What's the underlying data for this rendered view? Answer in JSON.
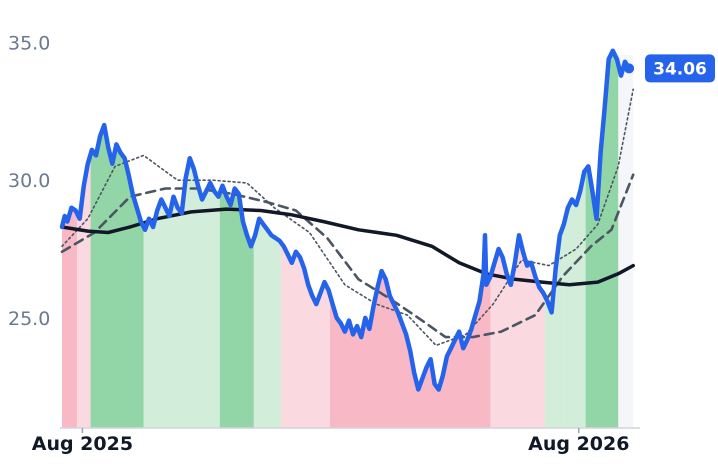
{
  "chart_data": {
    "type": "line",
    "x_ticks": [
      "Aug 2025",
      "Aug 2026"
    ],
    "y_ticks": [
      "35.0",
      "30.0",
      "25.0"
    ],
    "y_tick_values": [
      35,
      30,
      25
    ],
    "ylim": [
      21,
      36
    ],
    "x_start": "2025-07-17",
    "x_end": "2026-09-15",
    "x_tick_dates": [
      "2025-08-01",
      "2026-08-01"
    ],
    "last_value_label": "34.06",
    "last_value": 34.06,
    "colors": {
      "price": "#2563eb",
      "long_average": "#111827",
      "bands": "#4b5563",
      "green_band": "#7fcf98",
      "red_band": "#f8b4c2",
      "future_zone": "#f5f6fa"
    },
    "regime_blocks": [
      {
        "from": "2025-07-17",
        "to": "2025-07-28",
        "color": "red",
        "strength": "strong"
      },
      {
        "from": "2025-07-28",
        "to": "2025-08-07",
        "color": "red",
        "strength": "weak"
      },
      {
        "from": "2025-08-07",
        "to": "2025-09-15",
        "color": "green",
        "strength": "strong"
      },
      {
        "from": "2025-09-15",
        "to": "2025-11-10",
        "color": "green",
        "strength": "weak"
      },
      {
        "from": "2025-11-10",
        "to": "2025-12-05",
        "color": "green",
        "strength": "strong"
      },
      {
        "from": "2025-12-05",
        "to": "2025-12-25",
        "color": "green",
        "strength": "weak"
      },
      {
        "from": "2025-12-25",
        "to": "2026-01-30",
        "color": "red",
        "strength": "weak"
      },
      {
        "from": "2026-01-30",
        "to": "2026-05-28",
        "color": "red",
        "strength": "strong"
      },
      {
        "from": "2026-05-28",
        "to": "2026-07-07",
        "color": "red",
        "strength": "weak"
      },
      {
        "from": "2026-07-07",
        "to": "2026-07-21",
        "color": "green",
        "strength": "weak"
      },
      {
        "from": "2026-07-21",
        "to": "2026-08-06",
        "color": "green",
        "strength": "weak"
      },
      {
        "from": "2026-08-06",
        "to": "2026-08-30",
        "color": "green",
        "strength": "strong"
      }
    ],
    "series": [
      {
        "name": "",
        "role": "price",
        "points": [
          [
            "2025-07-17",
            28.3
          ],
          [
            "2025-07-19",
            28.7
          ],
          [
            "2025-07-21",
            28.5
          ],
          [
            "2025-07-24",
            29.0
          ],
          [
            "2025-07-27",
            28.9
          ],
          [
            "2025-07-30",
            28.6
          ],
          [
            "2025-08-02",
            29.8
          ],
          [
            "2025-08-05",
            30.6
          ],
          [
            "2025-08-08",
            31.1
          ],
          [
            "2025-08-11",
            30.9
          ],
          [
            "2025-08-14",
            31.6
          ],
          [
            "2025-08-17",
            32.0
          ],
          [
            "2025-08-20",
            31.2
          ],
          [
            "2025-08-23",
            30.6
          ],
          [
            "2025-08-26",
            31.3
          ],
          [
            "2025-08-29",
            31.0
          ],
          [
            "2025-09-01",
            30.8
          ],
          [
            "2025-09-04",
            30.2
          ],
          [
            "2025-09-07",
            29.5
          ],
          [
            "2025-09-10",
            29.0
          ],
          [
            "2025-09-13",
            28.5
          ],
          [
            "2025-09-16",
            28.2
          ],
          [
            "2025-09-19",
            28.6
          ],
          [
            "2025-09-22",
            28.3
          ],
          [
            "2025-09-25",
            28.9
          ],
          [
            "2025-09-28",
            29.3
          ],
          [
            "2025-10-01",
            29.0
          ],
          [
            "2025-10-04",
            28.7
          ],
          [
            "2025-10-07",
            29.4
          ],
          [
            "2025-10-10",
            29.0
          ],
          [
            "2025-10-13",
            28.8
          ],
          [
            "2025-10-16",
            30.1
          ],
          [
            "2025-10-19",
            30.8
          ],
          [
            "2025-10-22",
            30.4
          ],
          [
            "2025-10-25",
            29.8
          ],
          [
            "2025-10-28",
            29.3
          ],
          [
            "2025-10-31",
            29.6
          ],
          [
            "2025-11-03",
            29.9
          ],
          [
            "2025-11-06",
            29.6
          ],
          [
            "2025-11-09",
            29.4
          ],
          [
            "2025-11-12",
            29.8
          ],
          [
            "2025-11-15",
            29.4
          ],
          [
            "2025-11-18",
            29.1
          ],
          [
            "2025-11-21",
            29.7
          ],
          [
            "2025-11-24",
            29.5
          ],
          [
            "2025-11-27",
            28.5
          ],
          [
            "2025-11-30",
            28.0
          ],
          [
            "2025-12-03",
            27.6
          ],
          [
            "2025-12-06",
            28.0
          ],
          [
            "2025-12-09",
            28.6
          ],
          [
            "2025-12-12",
            28.4
          ],
          [
            "2025-12-15",
            28.2
          ],
          [
            "2025-12-18",
            28.0
          ],
          [
            "2025-12-21",
            27.9
          ],
          [
            "2025-12-24",
            27.8
          ],
          [
            "2025-12-27",
            27.6
          ],
          [
            "2025-12-30",
            27.3
          ],
          [
            "2026-01-02",
            27.0
          ],
          [
            "2026-01-05",
            27.4
          ],
          [
            "2026-01-08",
            27.2
          ],
          [
            "2026-01-11",
            26.8
          ],
          [
            "2026-01-14",
            26.2
          ],
          [
            "2026-01-17",
            25.8
          ],
          [
            "2026-01-20",
            25.5
          ],
          [
            "2026-01-23",
            25.9
          ],
          [
            "2026-01-26",
            26.3
          ],
          [
            "2026-01-29",
            26.0
          ],
          [
            "2026-02-01",
            25.5
          ],
          [
            "2026-02-04",
            25.0
          ],
          [
            "2026-02-07",
            24.8
          ],
          [
            "2026-02-10",
            24.5
          ],
          [
            "2026-02-13",
            24.9
          ],
          [
            "2026-02-16",
            24.4
          ],
          [
            "2026-02-19",
            24.7
          ],
          [
            "2026-02-22",
            24.3
          ],
          [
            "2026-02-25",
            25.0
          ],
          [
            "2026-02-28",
            24.6
          ],
          [
            "2026-03-03",
            25.4
          ],
          [
            "2026-03-06",
            26.1
          ],
          [
            "2026-03-09",
            26.7
          ],
          [
            "2026-03-12",
            26.4
          ],
          [
            "2026-03-15",
            25.8
          ],
          [
            "2026-03-18",
            25.5
          ],
          [
            "2026-03-21",
            25.2
          ],
          [
            "2026-03-24",
            24.8
          ],
          [
            "2026-03-27",
            24.4
          ],
          [
            "2026-03-30",
            23.8
          ],
          [
            "2026-04-02",
            23.0
          ],
          [
            "2026-04-05",
            22.4
          ],
          [
            "2026-04-08",
            22.8
          ],
          [
            "2026-04-11",
            23.2
          ],
          [
            "2026-04-14",
            23.5
          ],
          [
            "2026-04-17",
            22.6
          ],
          [
            "2026-04-20",
            22.4
          ],
          [
            "2026-04-23",
            22.9
          ],
          [
            "2026-04-26",
            23.6
          ],
          [
            "2026-04-29",
            23.9
          ],
          [
            "2026-05-02",
            24.2
          ],
          [
            "2026-05-05",
            24.5
          ],
          [
            "2026-05-08",
            23.9
          ],
          [
            "2026-05-11",
            24.2
          ],
          [
            "2026-05-14",
            24.6
          ],
          [
            "2026-05-17",
            25.1
          ],
          [
            "2026-05-20",
            25.6
          ],
          [
            "2026-05-23",
            26.6
          ],
          [
            "2026-05-24",
            28.0
          ],
          [
            "2026-05-25",
            26.2
          ],
          [
            "2026-05-28",
            26.5
          ],
          [
            "2026-05-31",
            27.0
          ],
          [
            "2026-06-03",
            27.5
          ],
          [
            "2026-06-06",
            27.2
          ],
          [
            "2026-06-09",
            26.6
          ],
          [
            "2026-06-12",
            26.2
          ],
          [
            "2026-06-15",
            27.0
          ],
          [
            "2026-06-18",
            28.0
          ],
          [
            "2026-06-21",
            27.4
          ],
          [
            "2026-06-24",
            26.9
          ],
          [
            "2026-06-27",
            27.0
          ],
          [
            "2026-06-30",
            26.5
          ],
          [
            "2026-07-03",
            26.1
          ],
          [
            "2026-07-06",
            25.9
          ],
          [
            "2026-07-09",
            25.6
          ],
          [
            "2026-07-12",
            25.2
          ],
          [
            "2026-07-15",
            26.8
          ],
          [
            "2026-07-18",
            28.0
          ],
          [
            "2026-07-21",
            28.4
          ],
          [
            "2026-07-24",
            29.0
          ],
          [
            "2026-07-27",
            29.3
          ],
          [
            "2026-07-30",
            29.1
          ],
          [
            "2026-08-02",
            29.6
          ],
          [
            "2026-08-05",
            30.3
          ],
          [
            "2026-08-08",
            30.5
          ],
          [
            "2026-08-11",
            29.6
          ],
          [
            "2026-08-14",
            28.6
          ],
          [
            "2026-08-17",
            31.0
          ],
          [
            "2026-08-20",
            32.6
          ],
          [
            "2026-08-23",
            34.4
          ],
          [
            "2026-08-26",
            34.7
          ],
          [
            "2026-08-29",
            34.4
          ],
          [
            "2026-09-01",
            33.8
          ],
          [
            "2026-09-04",
            34.3
          ],
          [
            "2026-09-07",
            34.06
          ]
        ]
      },
      {
        "name": "",
        "role": "long_average",
        "points": [
          [
            "2025-07-17",
            28.3
          ],
          [
            "2025-08-05",
            28.15
          ],
          [
            "2025-08-20",
            28.1
          ],
          [
            "2025-09-05",
            28.3
          ],
          [
            "2025-09-25",
            28.6
          ],
          [
            "2025-10-20",
            28.85
          ],
          [
            "2025-11-15",
            28.95
          ],
          [
            "2025-12-10",
            28.9
          ],
          [
            "2026-01-01",
            28.75
          ],
          [
            "2026-01-25",
            28.5
          ],
          [
            "2026-02-20",
            28.2
          ],
          [
            "2026-03-20",
            28.0
          ],
          [
            "2026-04-15",
            27.6
          ],
          [
            "2026-05-05",
            27.0
          ],
          [
            "2026-05-25",
            26.6
          ],
          [
            "2026-06-15",
            26.4
          ],
          [
            "2026-07-05",
            26.3
          ],
          [
            "2026-07-25",
            26.2
          ],
          [
            "2026-08-15",
            26.3
          ],
          [
            "2026-08-30",
            26.6
          ],
          [
            "2026-09-10",
            26.9
          ]
        ]
      },
      {
        "name": "",
        "role": "upper_band",
        "points": [
          [
            "2025-07-17",
            27.6
          ],
          [
            "2025-08-05",
            28.6
          ],
          [
            "2025-08-25",
            30.5
          ],
          [
            "2025-09-15",
            30.9
          ],
          [
            "2025-10-10",
            30.0
          ],
          [
            "2025-11-05",
            30.0
          ],
          [
            "2025-11-30",
            29.9
          ],
          [
            "2025-12-20",
            29.0
          ],
          [
            "2026-01-15",
            28.1
          ],
          [
            "2026-02-10",
            26.2
          ],
          [
            "2026-03-05",
            25.5
          ],
          [
            "2026-03-28",
            25.1
          ],
          [
            "2026-04-18",
            24.0
          ],
          [
            "2026-05-10",
            24.4
          ],
          [
            "2026-05-30",
            25.5
          ],
          [
            "2026-06-20",
            27.1
          ],
          [
            "2026-07-10",
            26.9
          ],
          [
            "2026-07-30",
            27.5
          ],
          [
            "2026-08-15",
            28.4
          ],
          [
            "2026-08-30",
            30.5
          ],
          [
            "2026-09-10",
            33.3
          ]
        ]
      },
      {
        "name": "",
        "role": "lower_band",
        "points": [
          [
            "2025-07-17",
            27.4
          ],
          [
            "2025-08-10",
            28.1
          ],
          [
            "2025-09-05",
            29.4
          ],
          [
            "2025-10-01",
            29.7
          ],
          [
            "2025-10-25",
            29.7
          ],
          [
            "2025-11-20",
            29.5
          ],
          [
            "2025-12-15",
            29.2
          ],
          [
            "2026-01-05",
            28.9
          ],
          [
            "2026-01-28",
            27.9
          ],
          [
            "2026-02-20",
            26.4
          ],
          [
            "2026-03-15",
            25.7
          ],
          [
            "2026-04-05",
            25.0
          ],
          [
            "2026-04-25",
            24.3
          ],
          [
            "2026-05-15",
            24.3
          ],
          [
            "2026-06-05",
            24.5
          ],
          [
            "2026-06-30",
            25.1
          ],
          [
            "2026-07-20",
            26.5
          ],
          [
            "2026-08-10",
            27.6
          ],
          [
            "2026-08-25",
            28.2
          ],
          [
            "2026-09-10",
            30.2
          ]
        ]
      }
    ],
    "grid": false,
    "legend": "none"
  }
}
